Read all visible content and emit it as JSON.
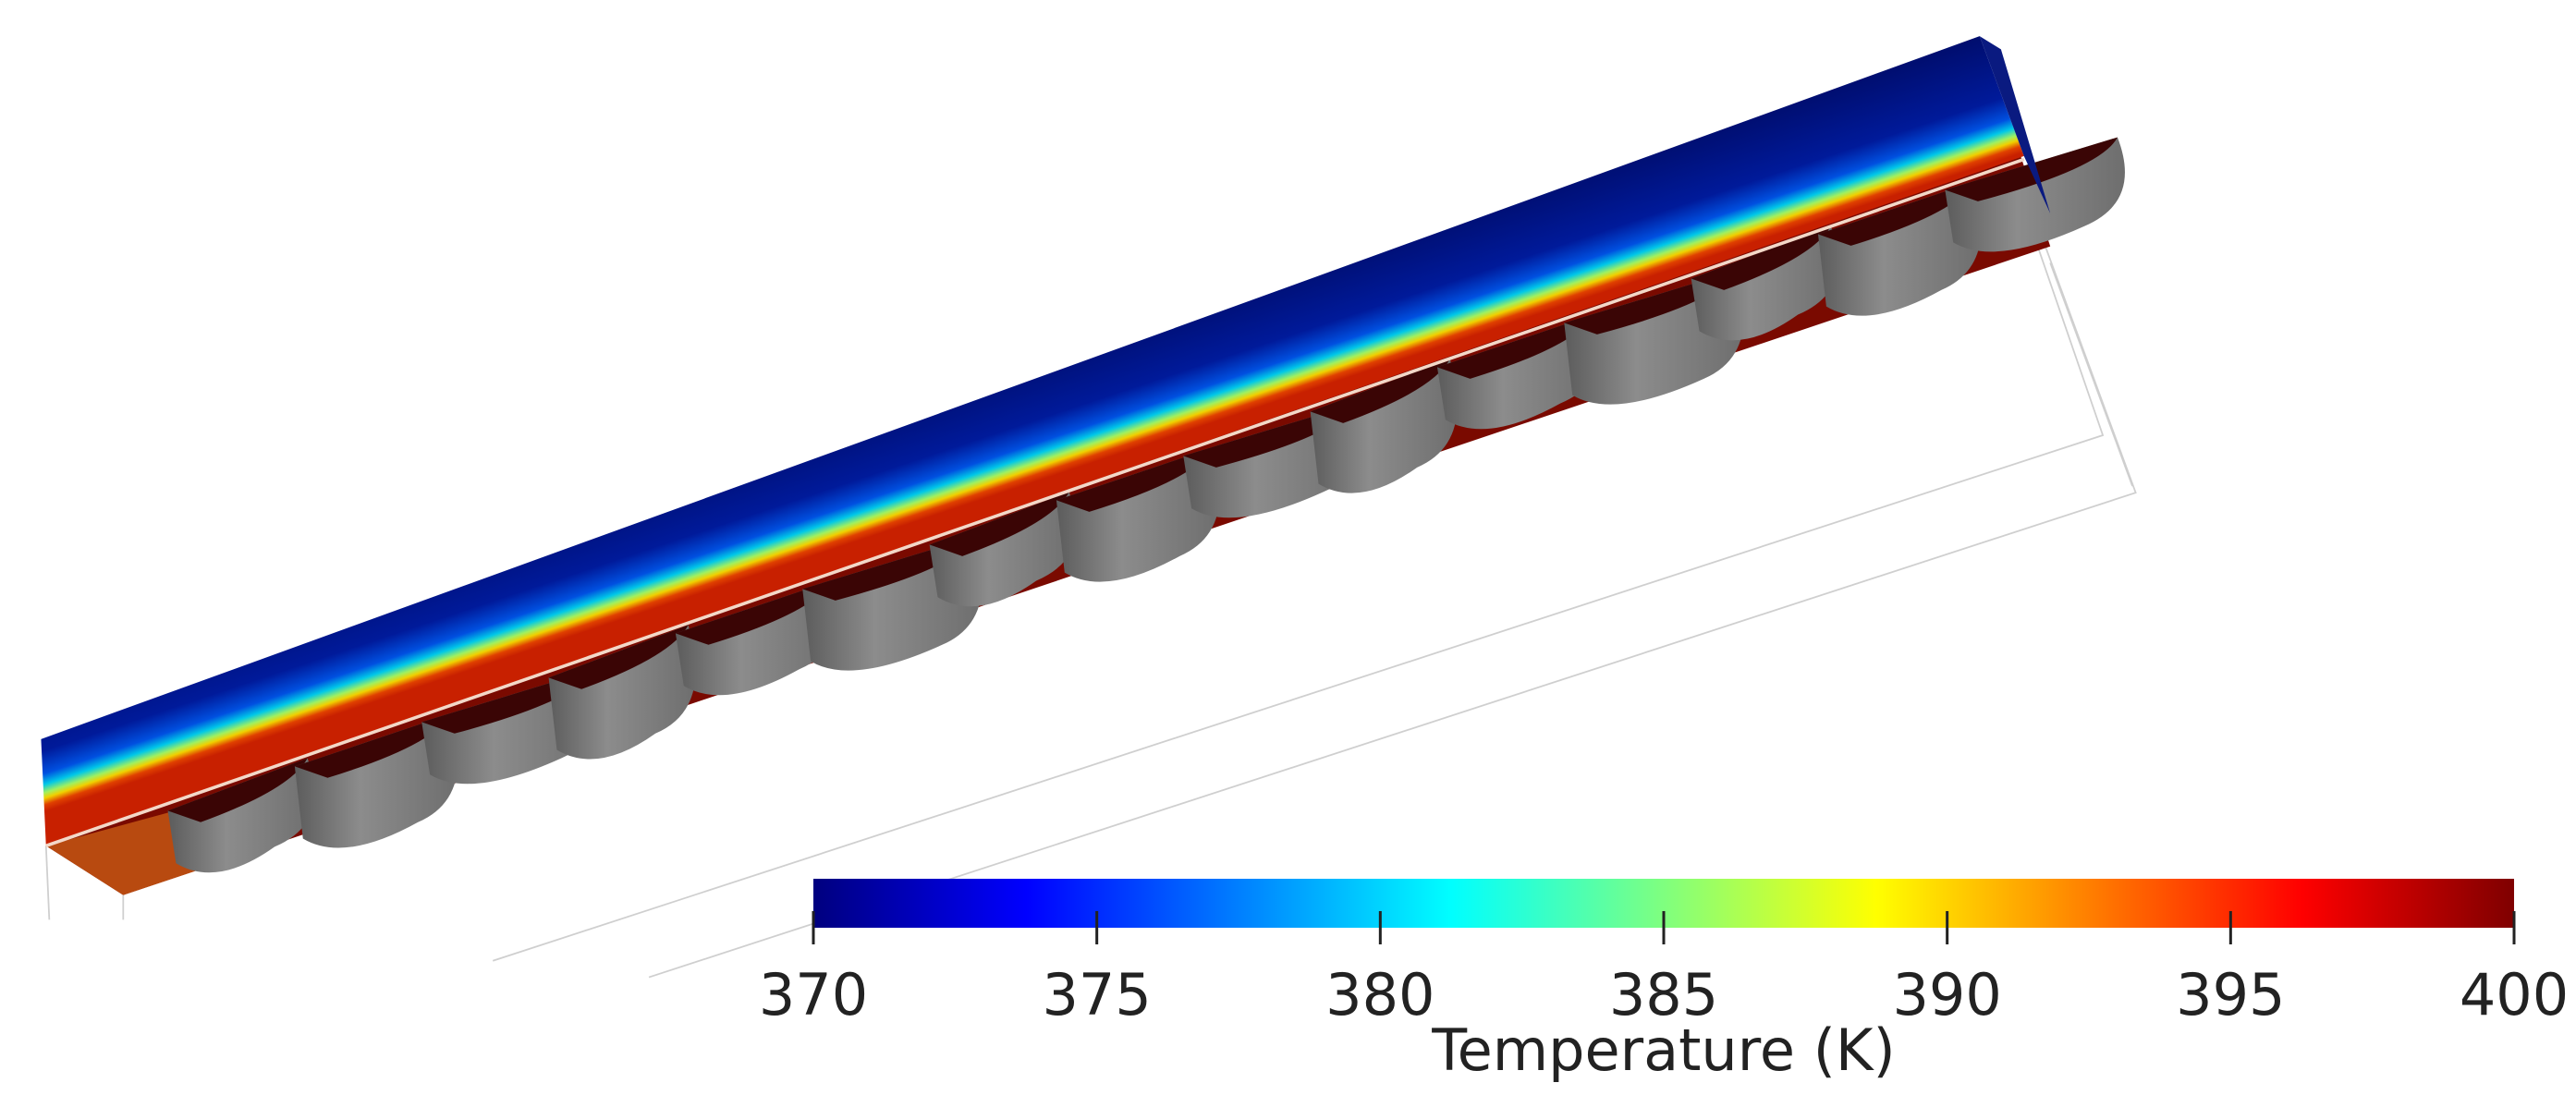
{
  "colorbar": {
    "title": "Temperature (K)",
    "range": [
      370,
      400
    ],
    "ticks": [
      370,
      375,
      380,
      385,
      390,
      395,
      400
    ],
    "colormap": [
      "#00007f",
      "#0000ff",
      "#007fff",
      "#00ffff",
      "#7fff7f",
      "#ffff00",
      "#ff7f00",
      "#ff0000",
      "#7f0000"
    ]
  }
}
